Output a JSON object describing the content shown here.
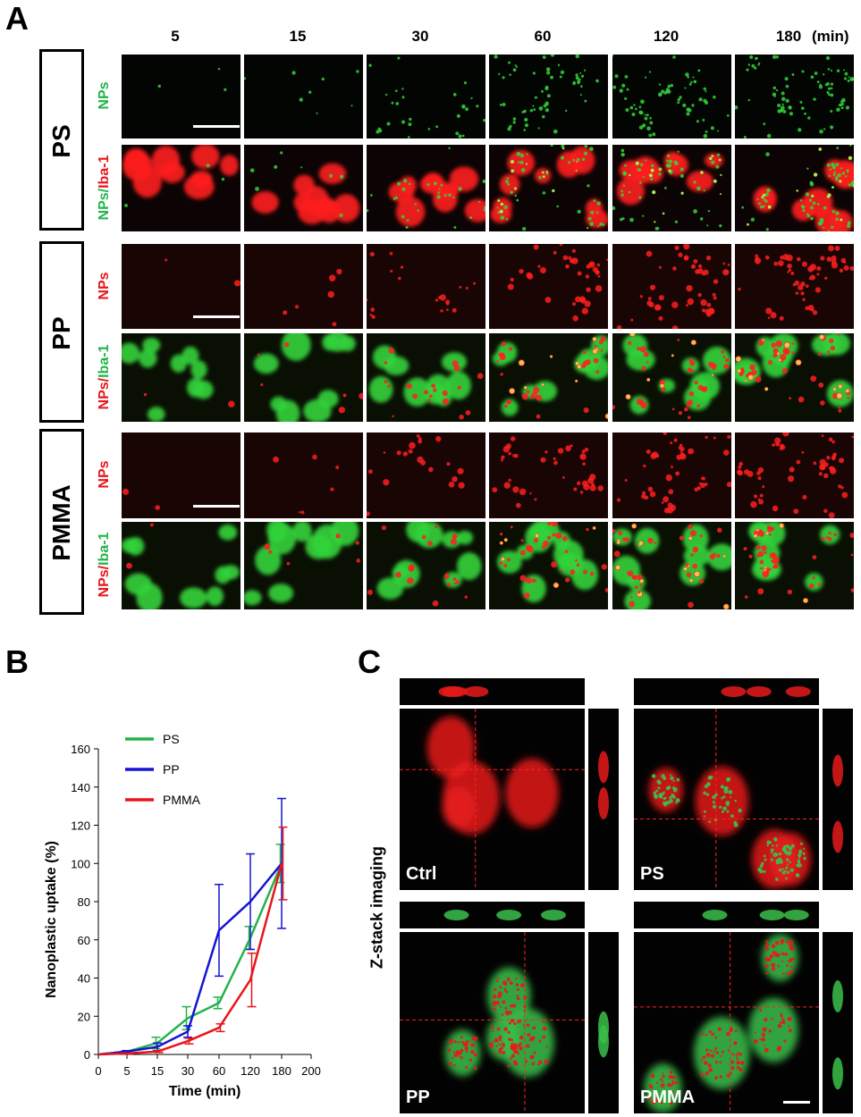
{
  "panel_a": {
    "letter": "A",
    "time_labels": [
      "5",
      "15",
      "30",
      "60",
      "120",
      "180"
    ],
    "time_unit": "(min)",
    "groups": [
      {
        "name": "PS",
        "row1_label": [
          {
            "text": "NPs",
            "color": "#22b34a"
          }
        ],
        "row2_label": [
          {
            "text": "NPs",
            "color": "#22b34a"
          },
          {
            "text": "/",
            "color": "#22b34a"
          },
          {
            "text": "Iba-1",
            "color": "#e8151b"
          }
        ]
      },
      {
        "name": "PP",
        "row1_label": [
          {
            "text": "NPs",
            "color": "#e8151b"
          }
        ],
        "row2_label": [
          {
            "text": "NPs",
            "color": "#e8151b"
          },
          {
            "text": "/",
            "color": "#e8151b"
          },
          {
            "text": "Iba-1",
            "color": "#22b34a"
          }
        ]
      },
      {
        "name": "PMMA",
        "row1_label": [
          {
            "text": "NPs",
            "color": "#e8151b"
          }
        ],
        "row2_label": [
          {
            "text": "NPs",
            "color": "#e8151b"
          },
          {
            "text": "/",
            "color": "#e8151b"
          },
          {
            "text": "Iba-1",
            "color": "#22b34a"
          }
        ]
      }
    ]
  },
  "panel_b": {
    "letter": "B",
    "chart_data": {
      "type": "line",
      "x": [
        0,
        5,
        15,
        30,
        60,
        120,
        180
      ],
      "x_ticks": [
        "0",
        "5",
        "15",
        "30",
        "60",
        "120",
        "180",
        "200"
      ],
      "xlabel": "Time (min)",
      "ylabel": "Nanoplastic uptake (%)",
      "ylim": [
        0,
        160
      ],
      "y_ticks": [
        0,
        20,
        40,
        60,
        80,
        100,
        120,
        140,
        160
      ],
      "legend_position": "top-left",
      "series": [
        {
          "name": "PS",
          "color": "#22b34a",
          "values": [
            0,
            1.5,
            6,
            19,
            27,
            61,
            100
          ],
          "errors": [
            0,
            0.5,
            3,
            6,
            3,
            6,
            10
          ]
        },
        {
          "name": "PP",
          "color": "#1414d2",
          "values": [
            0,
            1.5,
            4,
            12,
            65,
            80,
            100
          ],
          "errors": [
            0,
            0.5,
            2,
            3,
            24,
            25,
            34
          ]
        },
        {
          "name": "PMMA",
          "color": "#e8151b",
          "values": [
            0,
            0.5,
            1.5,
            7,
            14,
            39,
            100
          ],
          "errors": [
            0,
            0.3,
            0.5,
            1.5,
            2,
            14,
            19
          ]
        }
      ]
    }
  },
  "panel_c": {
    "letter": "C",
    "side_title": "Z-stack imaging",
    "labels": [
      "Ctrl",
      "PS",
      "PP",
      "PMMA"
    ]
  }
}
